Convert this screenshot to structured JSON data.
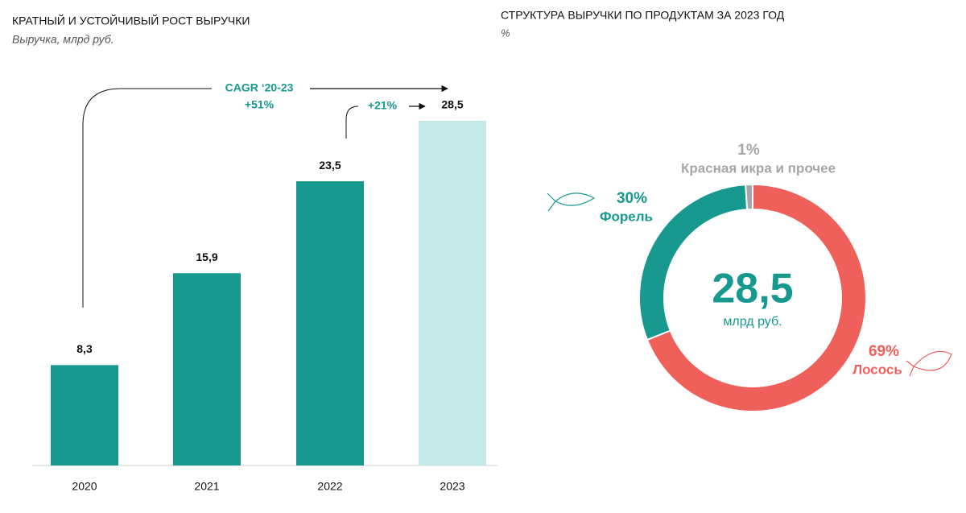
{
  "chart_data": [
    {
      "type": "bar",
      "title": "КРАТНЫЙ И УСТОЙЧИВЫЙ РОСТ ВЫРУЧКИ",
      "subtitle": "Выручка, млрд руб.",
      "categories": [
        "2020",
        "2021",
        "2022",
        "2023"
      ],
      "values": [
        8.3,
        15.9,
        23.5,
        28.5
      ],
      "value_labels": [
        "8,3",
        "15,9",
        "23,5",
        "28,5"
      ],
      "colors": [
        "#17998f",
        "#17998f",
        "#17998f",
        "#c5e9e8"
      ],
      "annotations": [
        "CAGR ‘20-23",
        "+51%",
        "+21%"
      ]
    },
    {
      "type": "donut",
      "title": "СТРУКТУРА ВЫРУЧКИ ПО ПРОДУКТАМ ЗА 2023 ГОД",
      "subtitle": "%",
      "categories": [
        "Лосось",
        "Форель",
        "Красная икра и прочее"
      ],
      "values": [
        69,
        30,
        1
      ],
      "value_labels": [
        "69%",
        "30%",
        "1%"
      ],
      "colors": [
        "#f0605a",
        "#17998f",
        "#a6a6a6"
      ],
      "total": 28.5,
      "total_label": "28,5",
      "total_unit": "млрд руб."
    }
  ]
}
